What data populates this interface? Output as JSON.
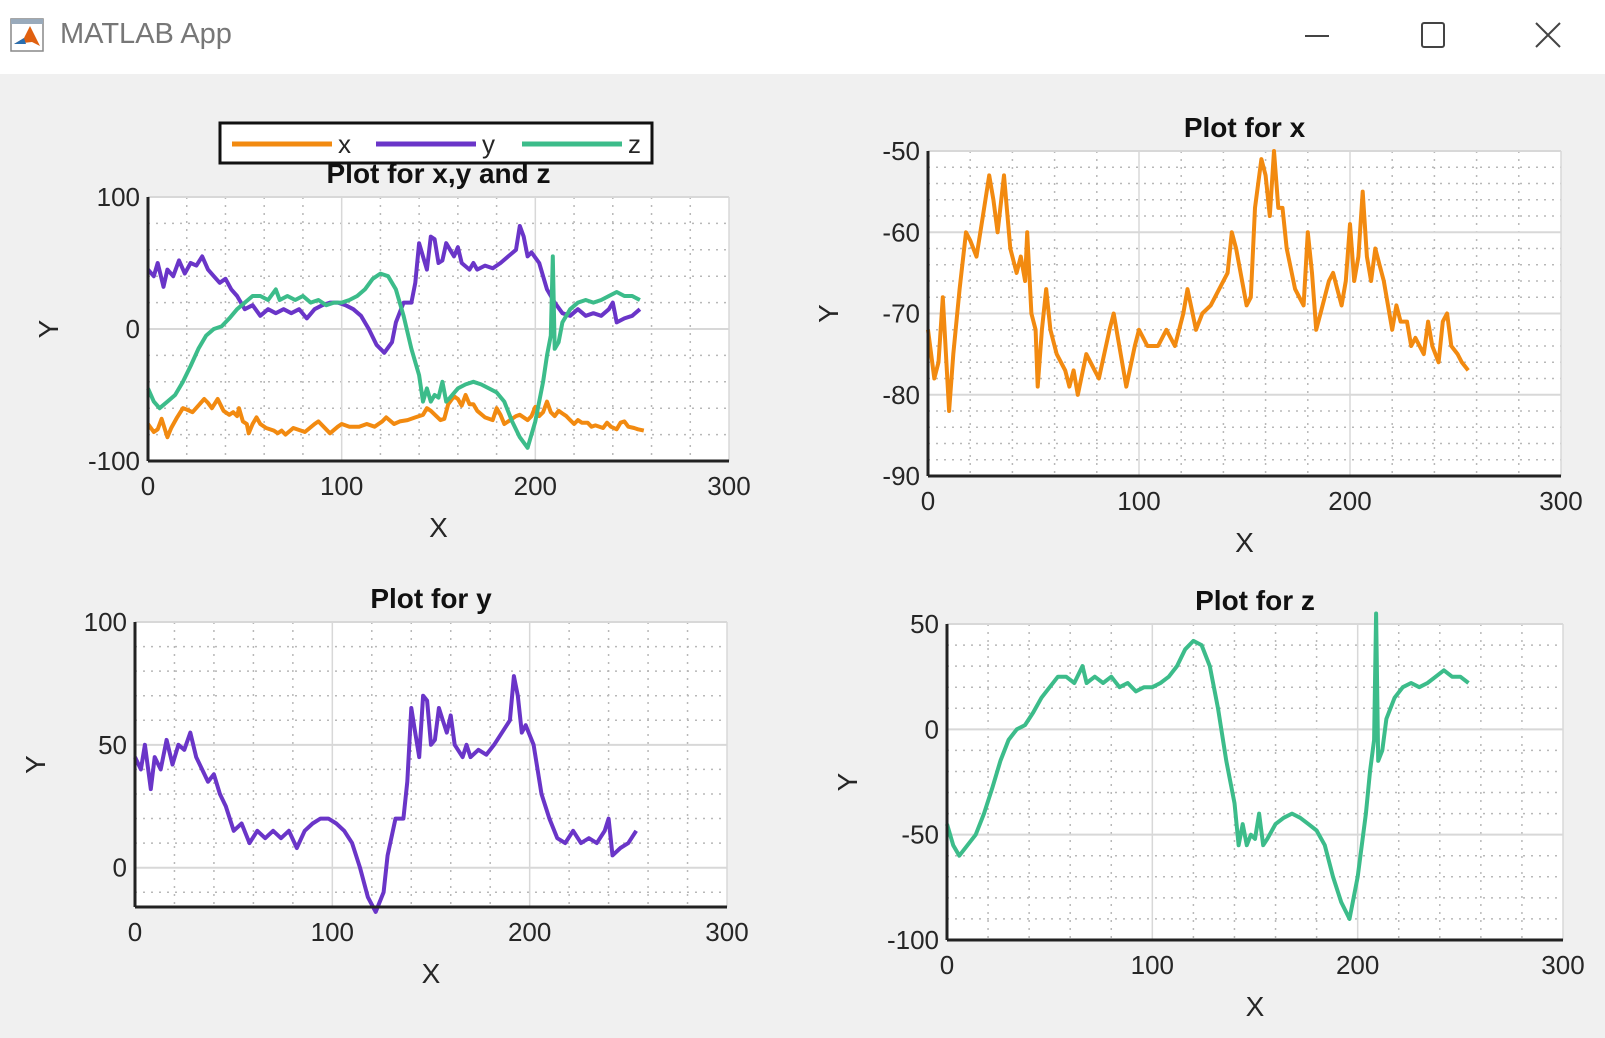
{
  "window": {
    "title": "MATLAB App",
    "icon": "matlab-logo-icon",
    "controls": [
      "minimize-icon",
      "maximize-icon",
      "close-icon"
    ]
  },
  "colors": {
    "x": "#f28a10",
    "y": "#6a35c8",
    "z": "#3cbc8a"
  },
  "chart_data": [
    {
      "type": "line",
      "title": "Plot for x,y and z",
      "xlabel": "X",
      "ylabel": "Y",
      "xlim": [
        0,
        300
      ],
      "ylim": [
        -100,
        100
      ],
      "xticks": [
        "0",
        "100",
        "200",
        "300"
      ],
      "yticks": [
        "-100",
        "0",
        "100"
      ],
      "grid": "on (major + minor)",
      "legend": {
        "placement": "top (above title)",
        "orientation": "horizontal",
        "entries": [
          "x",
          "y",
          "z"
        ]
      },
      "series": [
        {
          "name": "x",
          "ref": "x"
        },
        {
          "name": "y",
          "ref": "y"
        },
        {
          "name": "z",
          "ref": "z"
        }
      ]
    },
    {
      "type": "line",
      "title": "Plot for x",
      "xlabel": "X",
      "ylabel": "Y",
      "xlim": [
        0,
        300
      ],
      "ylim": [
        -90,
        -50
      ],
      "xticks": [
        "0",
        "100",
        "200",
        "300"
      ],
      "yticks": [
        "-90",
        "-80",
        "-70",
        "-60",
        "-50"
      ],
      "grid": "on (major + minor)",
      "series": [
        {
          "name": "x",
          "ref": "x"
        }
      ]
    },
    {
      "type": "line",
      "title": "Plot for y",
      "xlabel": "X",
      "ylabel": "Y",
      "xlim": [
        0,
        300
      ],
      "ylim": [
        -16,
        100
      ],
      "xticks": [
        "0",
        "100",
        "200",
        "300"
      ],
      "yticks": [
        "0",
        "50",
        "100"
      ],
      "grid": "on (major + minor)",
      "series": [
        {
          "name": "y",
          "ref": "y"
        }
      ]
    },
    {
      "type": "line",
      "title": "Plot for z",
      "xlabel": "X",
      "ylabel": "Y",
      "xlim": [
        0,
        300
      ],
      "ylim": [
        -100,
        50
      ],
      "xticks": [
        "0",
        "100",
        "200",
        "300"
      ],
      "yticks": [
        "-100",
        "-50",
        "0",
        "50"
      ],
      "grid": "on (major + minor)",
      "series": [
        {
          "name": "z",
          "ref": "z"
        }
      ]
    }
  ],
  "signals": {
    "x": {
      "x": [
        0,
        3,
        5,
        7,
        10,
        12,
        15,
        18,
        20,
        23,
        26,
        29,
        31,
        33,
        36,
        39,
        42,
        44,
        46,
        47,
        49,
        51,
        52,
        54,
        56,
        58,
        61,
        65,
        67,
        69,
        71,
        75,
        79,
        81,
        86,
        88,
        90,
        94,
        98,
        100,
        104,
        109,
        113,
        117,
        121,
        123,
        127,
        130,
        134,
        138,
        142,
        144,
        146,
        151,
        153,
        155,
        158,
        160,
        162,
        164,
        166,
        168,
        170,
        174,
        178,
        180,
        182,
        184,
        186,
        190,
        192,
        194,
        196,
        198,
        200,
        202,
        204,
        206,
        208,
        210,
        212,
        214,
        216,
        218,
        220,
        222,
        224,
        227,
        229,
        231,
        235,
        237,
        239,
        242,
        244,
        246,
        248,
        251,
        253,
        256
      ],
      "y": [
        -72,
        -78,
        -76,
        -68,
        -82,
        -75,
        -67,
        -60,
        -61,
        -63,
        -58,
        -53,
        -56,
        -60,
        -53,
        -62,
        -65,
        -63,
        -66,
        -60,
        -70,
        -72,
        -79,
        -72,
        -67,
        -72,
        -75,
        -77,
        -79,
        -77,
        -80,
        -75,
        -77,
        -78,
        -72,
        -70,
        -73,
        -79,
        -74,
        -72,
        -74,
        -74,
        -72,
        -74,
        -70,
        -67,
        -72,
        -70,
        -69,
        -67,
        -65,
        -60,
        -62,
        -69,
        -68,
        -57,
        -51,
        -53,
        -58,
        -50,
        -57,
        -57,
        -62,
        -67,
        -69,
        -60,
        -65,
        -72,
        -70,
        -66,
        -65,
        -67,
        -69,
        -66,
        -59,
        -66,
        -63,
        -55,
        -63,
        -66,
        -62,
        -64,
        -66,
        -69,
        -72,
        -69,
        -71,
        -71,
        -74,
        -73,
        -75,
        -71,
        -74,
        -76,
        -71,
        -70,
        -74,
        -75,
        -76,
        -77
      ]
    },
    "y": {
      "x": [
        0,
        3,
        5,
        8,
        10,
        13,
        16,
        19,
        22,
        25,
        28,
        31,
        34,
        37,
        40,
        43,
        46,
        50,
        54,
        58,
        62,
        66,
        70,
        74,
        78,
        82,
        86,
        90,
        94,
        98,
        102,
        106,
        110,
        114,
        118,
        122,
        126,
        128,
        132,
        136,
        138,
        140,
        142,
        144,
        146,
        148,
        150,
        152,
        154,
        156,
        158,
        160,
        162,
        166,
        168,
        170,
        174,
        178,
        182,
        186,
        190,
        192,
        194,
        196,
        198,
        202,
        206,
        210,
        214,
        218,
        222,
        226,
        230,
        234,
        238,
        240,
        242,
        246,
        250,
        254
      ],
      "y": [
        45,
        40,
        50,
        32,
        45,
        40,
        52,
        42,
        50,
        48,
        55,
        45,
        40,
        35,
        38,
        30,
        25,
        15,
        18,
        10,
        15,
        12,
        15,
        12,
        15,
        8,
        15,
        18,
        20,
        20,
        18,
        15,
        10,
        0,
        -12,
        -18,
        -10,
        5,
        20,
        20,
        35,
        65,
        55,
        45,
        70,
        68,
        50,
        52,
        65,
        60,
        55,
        62,
        50,
        45,
        50,
        45,
        48,
        46,
        50,
        55,
        60,
        78,
        70,
        55,
        58,
        50,
        30,
        20,
        12,
        10,
        15,
        10,
        12,
        10,
        15,
        20,
        5,
        8,
        10,
        15
      ]
    },
    "z": {
      "x": [
        0,
        3,
        6,
        10,
        14,
        18,
        22,
        26,
        30,
        34,
        38,
        42,
        46,
        50,
        54,
        58,
        62,
        66,
        68,
        72,
        76,
        80,
        84,
        88,
        92,
        96,
        100,
        104,
        108,
        112,
        116,
        120,
        124,
        128,
        132,
        136,
        140,
        142,
        144,
        146,
        148,
        150,
        152,
        154,
        156,
        160,
        164,
        168,
        172,
        176,
        180,
        184,
        188,
        192,
        196,
        200,
        204,
        206,
        208,
        209,
        210,
        212,
        214,
        218,
        222,
        226,
        230,
        234,
        238,
        242,
        246,
        250,
        254
      ],
      "y": [
        -45,
        -55,
        -60,
        -55,
        -50,
        -40,
        -28,
        -15,
        -5,
        0,
        2,
        8,
        15,
        20,
        25,
        25,
        22,
        30,
        22,
        25,
        22,
        25,
        20,
        22,
        18,
        20,
        20,
        22,
        25,
        30,
        38,
        42,
        40,
        30,
        10,
        -15,
        -35,
        -55,
        -45,
        -55,
        -50,
        -52,
        -40,
        -55,
        -52,
        -45,
        -42,
        -40,
        -42,
        -45,
        -48,
        -55,
        -70,
        -82,
        -90,
        -70,
        -40,
        -20,
        -5,
        55,
        -15,
        -10,
        5,
        15,
        20,
        22,
        20,
        22,
        25,
        28,
        25,
        25,
        22
      ]
    }
  }
}
